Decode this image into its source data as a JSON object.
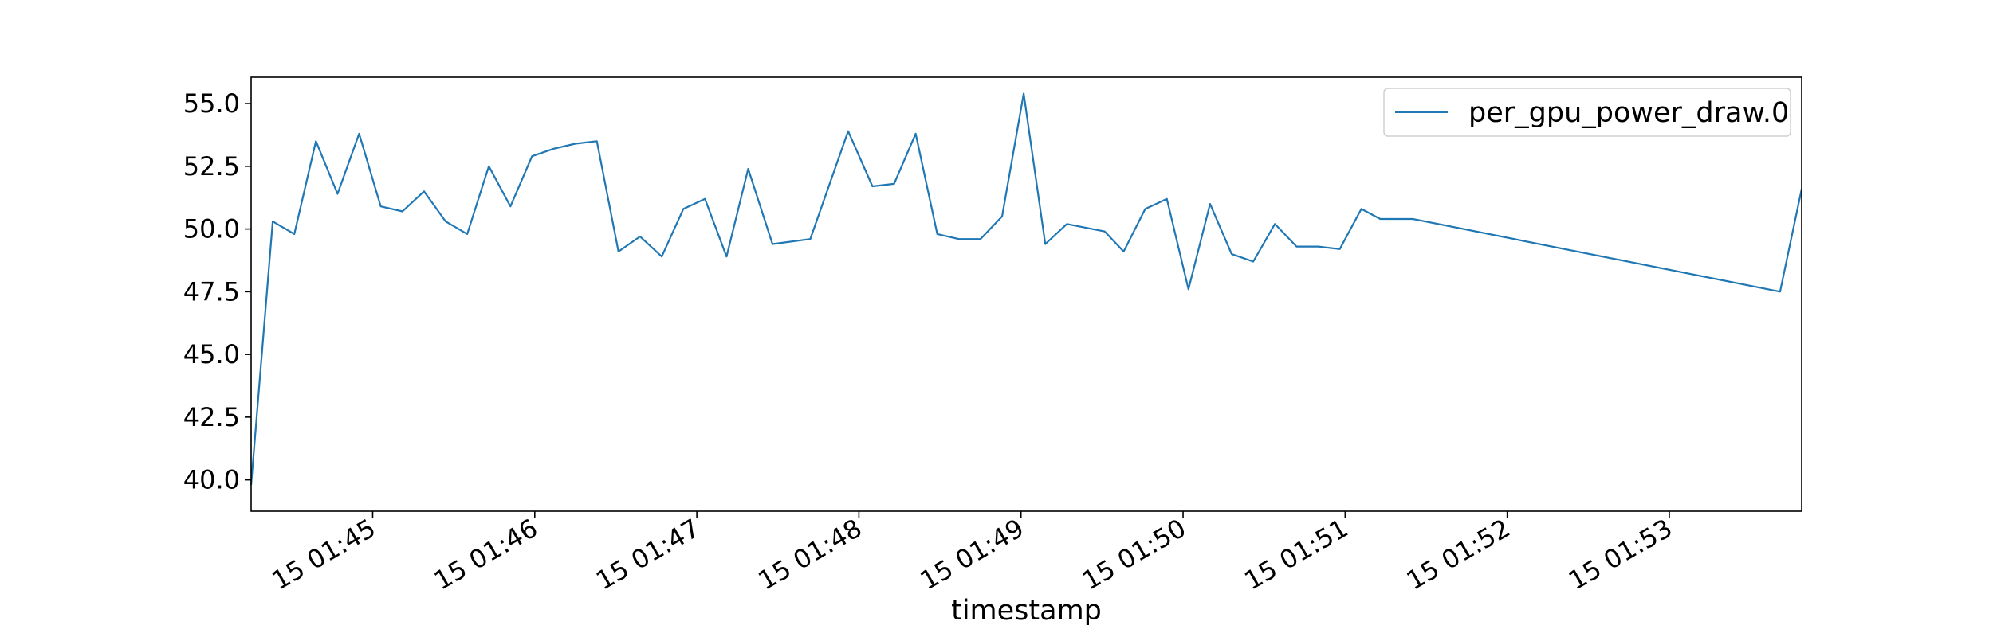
{
  "chart_data": {
    "type": "line",
    "title": "",
    "xlabel": "timestamp",
    "ylabel": "",
    "x_tick_labels": [
      "15 01:45",
      "15 01:46",
      "15 01:47",
      "15 01:48",
      "15 01:49",
      "15 01:50",
      "15 01:51",
      "15 01:52",
      "15 01:53"
    ],
    "x_ticks": [
      "01:45:00",
      "01:46:00",
      "01:47:00",
      "01:48:00",
      "01:49:00",
      "01:50:00",
      "01:51:00",
      "01:52:00",
      "01:53:00"
    ],
    "y_ticks": [
      40.0,
      42.5,
      45.0,
      47.5,
      50.0,
      52.5,
      55.0
    ],
    "xlim": [
      "01:44:15",
      "01:53:49"
    ],
    "ylim": [
      38.75,
      56.05
    ],
    "grid": false,
    "legend": {
      "position": "top-right",
      "entries": [
        "per_gpu_power_draw.0"
      ]
    },
    "series": [
      {
        "name": "per_gpu_power_draw.0",
        "color": "#1f77b4",
        "x": [
          "01:44:15",
          "01:44:23",
          "01:44:31",
          "01:44:39",
          "01:44:47",
          "01:44:55",
          "01:45:03",
          "01:45:11",
          "01:45:19",
          "01:45:27",
          "01:45:35",
          "01:45:43",
          "01:45:51",
          "01:45:59",
          "01:46:07",
          "01:46:15",
          "01:46:23",
          "01:46:31",
          "01:46:39",
          "01:46:47",
          "01:46:55",
          "01:47:03",
          "01:47:11",
          "01:47:19",
          "01:47:28",
          "01:47:42",
          "01:47:56",
          "01:48:05",
          "01:48:13",
          "01:48:21",
          "01:48:29",
          "01:48:37",
          "01:48:45",
          "01:48:53",
          "01:49:01",
          "01:49:09",
          "01:49:17",
          "01:49:31",
          "01:49:38",
          "01:49:46",
          "01:49:54",
          "01:50:02",
          "01:50:10",
          "01:50:18",
          "01:50:26",
          "01:50:34",
          "01:50:42",
          "01:50:50",
          "01:50:58",
          "01:51:06",
          "01:51:13",
          "01:51:25",
          "01:53:41",
          "01:53:49"
        ],
        "y": [
          39.8,
          50.3,
          49.8,
          53.5,
          51.4,
          53.8,
          50.9,
          50.7,
          51.5,
          50.3,
          49.8,
          52.5,
          50.9,
          52.9,
          53.2,
          53.4,
          53.5,
          49.1,
          49.7,
          48.9,
          50.8,
          51.2,
          48.9,
          52.4,
          49.4,
          49.6,
          53.9,
          51.7,
          51.8,
          53.8,
          49.8,
          49.6,
          49.6,
          50.5,
          55.4,
          49.4,
          50.2,
          49.9,
          49.1,
          50.8,
          51.2,
          47.6,
          51.0,
          49.0,
          48.7,
          50.2,
          49.3,
          49.3,
          49.2,
          50.8,
          50.4,
          50.4,
          47.5,
          51.6
        ]
      }
    ]
  }
}
